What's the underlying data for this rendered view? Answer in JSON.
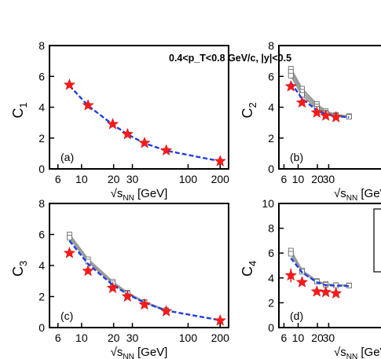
{
  "header_text": "0.4<p_T<0.8 GeV/c, |y|<0.5",
  "chart_data": [
    {
      "id": "a",
      "type": "line",
      "panel_label": "(a)",
      "ylabel": "C1",
      "xlabel": "√sNN [GeV]",
      "xscale": "log",
      "xlim": [
        5,
        240
      ],
      "ylim": [
        0,
        8
      ],
      "xticks": [
        6,
        10,
        20,
        30,
        100,
        200
      ],
      "xtick_labels": [
        "6",
        "10",
        "20",
        "30",
        "100",
        "200"
      ],
      "yticks": [
        0,
        2,
        4,
        6,
        8
      ],
      "ytick_labels": [
        "0",
        "2",
        "4",
        "6",
        "8"
      ],
      "data": {
        "x": [
          7.7,
          11.5,
          19.6,
          27,
          39,
          62.4,
          200
        ],
        "y": [
          5.45,
          4.12,
          2.9,
          2.25,
          1.68,
          1.2,
          0.5
        ]
      },
      "model_dashed": {
        "x": [
          7.7,
          11.5,
          19.6,
          27,
          39,
          62.4,
          200
        ],
        "y": [
          5.4,
          4.1,
          2.88,
          2.24,
          1.66,
          1.18,
          0.5
        ]
      }
    },
    {
      "id": "b",
      "type": "line",
      "panel_label": "(b)",
      "ylabel": "C2",
      "xlabel": "√sNN [GeV]",
      "xscale": "log",
      "xlim": [
        5,
        240
      ],
      "ylim": [
        0,
        8
      ],
      "xticks": [
        6,
        10,
        20,
        30
      ],
      "xtick_labels": [
        "6",
        "10",
        "20",
        "30"
      ],
      "yticks": [
        0,
        2,
        4,
        6,
        8
      ],
      "ytick_labels": [
        "0",
        "2",
        "4",
        "6",
        "8"
      ],
      "data": {
        "x": [
          7.7,
          11.5,
          19.6,
          27,
          39
        ],
        "y": [
          5.35,
          4.3,
          3.65,
          3.45,
          3.35
        ]
      },
      "model_dashed": {
        "x": [
          7.7,
          11.5,
          19.6,
          27,
          39,
          62.4
        ],
        "y": [
          5.6,
          4.55,
          3.8,
          3.55,
          3.42,
          3.35
        ]
      },
      "model_band": [
        {
          "x": [
            7.7,
            11.5,
            19.6,
            27,
            39,
            62.4
          ],
          "y": [
            6.5,
            5.2,
            4.2,
            3.75,
            3.5,
            3.42
          ]
        },
        {
          "x": [
            7.7,
            11.5,
            19.6,
            27,
            39,
            62.4
          ],
          "y": [
            6.3,
            5.0,
            4.05,
            3.65,
            3.45,
            3.4
          ]
        },
        {
          "x": [
            7.7,
            11.5,
            19.6,
            27,
            39,
            62.4
          ],
          "y": [
            6.05,
            4.8,
            3.9,
            3.58,
            3.43,
            3.38
          ]
        }
      ]
    },
    {
      "id": "c",
      "type": "line",
      "panel_label": "(c)",
      "ylabel": "C3",
      "xlabel": "√sNN [GeV]",
      "xscale": "log",
      "xlim": [
        5,
        240
      ],
      "ylim": [
        0,
        8
      ],
      "xticks": [
        6,
        10,
        20,
        30,
        100,
        200
      ],
      "xtick_labels": [
        "6",
        "10",
        "20",
        "30",
        "100",
        "200"
      ],
      "yticks": [
        0,
        2,
        4,
        6,
        8
      ],
      "ytick_labels": [
        "0",
        "2",
        "4",
        "6",
        "8"
      ],
      "data": {
        "x": [
          7.7,
          11.5,
          19.6,
          27,
          39,
          62.4,
          200
        ],
        "y": [
          4.8,
          3.65,
          2.55,
          2.0,
          1.48,
          1.05,
          0.45
        ]
      },
      "model_dashed": {
        "x": [
          7.7,
          11.5,
          19.6,
          27,
          39,
          62.4,
          200
        ],
        "y": [
          5.6,
          4.1,
          2.75,
          2.15,
          1.6,
          1.1,
          0.47
        ]
      },
      "model_band": [
        {
          "x": [
            7.7,
            11.5,
            19.6,
            27,
            39,
            62.4
          ],
          "y": [
            6.0,
            4.4,
            2.95,
            2.25,
            1.65,
            1.12
          ]
        },
        {
          "x": [
            7.7,
            11.5,
            19.6,
            27,
            39,
            62.4
          ],
          "y": [
            5.8,
            4.25,
            2.85,
            2.2,
            1.62,
            1.1
          ]
        }
      ]
    },
    {
      "id": "d",
      "type": "line",
      "panel_label": "(d)",
      "ylabel": "C4",
      "xlabel": "√sNN [GeV]",
      "xscale": "log",
      "xlim": [
        5,
        240
      ],
      "ylim": [
        0,
        10
      ],
      "xticks": [
        6,
        10,
        20,
        30
      ],
      "xtick_labels": [
        "6",
        "10",
        "20",
        "30"
      ],
      "yticks": [
        0,
        2,
        4,
        6,
        8,
        10
      ],
      "ytick_labels": [
        "0",
        "2",
        "4",
        "6",
        "8",
        "10"
      ],
      "data": {
        "x": [
          7.7,
          11.5,
          19.6,
          27,
          39
        ],
        "y": [
          4.2,
          3.65,
          2.9,
          2.85,
          2.75
        ],
        "yerr": [
          0.55,
          0,
          0,
          0,
          0
        ]
      },
      "model_dashed": {
        "x": [
          7.7,
          11.5,
          19.6,
          27,
          39,
          62.4
        ],
        "y": [
          5.6,
          4.45,
          3.65,
          3.42,
          3.38,
          3.35
        ]
      },
      "model_band": [
        {
          "x": [
            7.7,
            11.5,
            19.6,
            27,
            39,
            62.4
          ],
          "y": [
            6.2,
            4.6,
            3.75,
            3.5,
            3.42,
            3.4
          ]
        },
        {
          "x": [
            7.7,
            11.5,
            19.6,
            27,
            39,
            62.4
          ],
          "y": [
            5.95,
            4.5,
            3.7,
            3.45,
            3.4,
            3.38
          ]
        }
      ]
    }
  ],
  "colors": {
    "data": "#ff1a1a",
    "model_dashed": "#1f3fe0",
    "band": "#9a9a9a",
    "axis": "#000000"
  }
}
